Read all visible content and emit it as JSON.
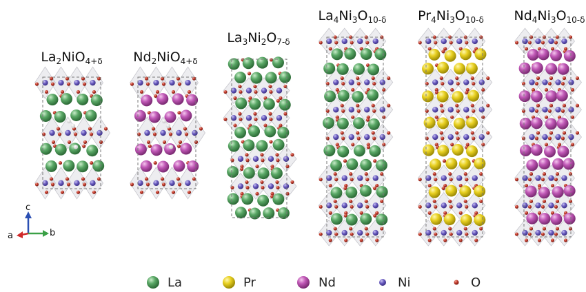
{
  "structures": [
    {
      "formula": [
        "La",
        "2",
        "NiO",
        "4+δ"
      ],
      "cation": "La"
    },
    {
      "formula": [
        "Nd",
        "2",
        "NiO",
        "4+δ"
      ],
      "cation": "Nd"
    },
    {
      "formula": [
        "La",
        "3",
        "Ni",
        "2",
        "O",
        "7-δ"
      ],
      "cation": "La"
    },
    {
      "formula": [
        "La",
        "4",
        "Ni",
        "3",
        "O",
        "10-δ"
      ],
      "cation": "La"
    },
    {
      "formula": [
        "Pr",
        "4",
        "Ni",
        "3",
        "O",
        "10-δ"
      ],
      "cation": "Pr"
    },
    {
      "formula": [
        "Nd",
        "4",
        "Ni",
        "3",
        "O",
        "10-δ"
      ],
      "cation": "Nd"
    }
  ],
  "axes": {
    "c": "c",
    "a": "a",
    "b": "b"
  },
  "legend": [
    {
      "label": "La",
      "color": "#4f9a5c",
      "icon": "la-atom-icon"
    },
    {
      "label": "Pr",
      "color": "#e2cc1a",
      "icon": "pr-atom-icon"
    },
    {
      "label": "Nd",
      "color": "#b84eae",
      "icon": "nd-atom-icon"
    },
    {
      "label": "Ni",
      "color": "#6a5cc0",
      "icon": "ni-atom-icon"
    },
    {
      "label": "O",
      "color": "#c0392b",
      "icon": "o-atom-icon"
    }
  ]
}
